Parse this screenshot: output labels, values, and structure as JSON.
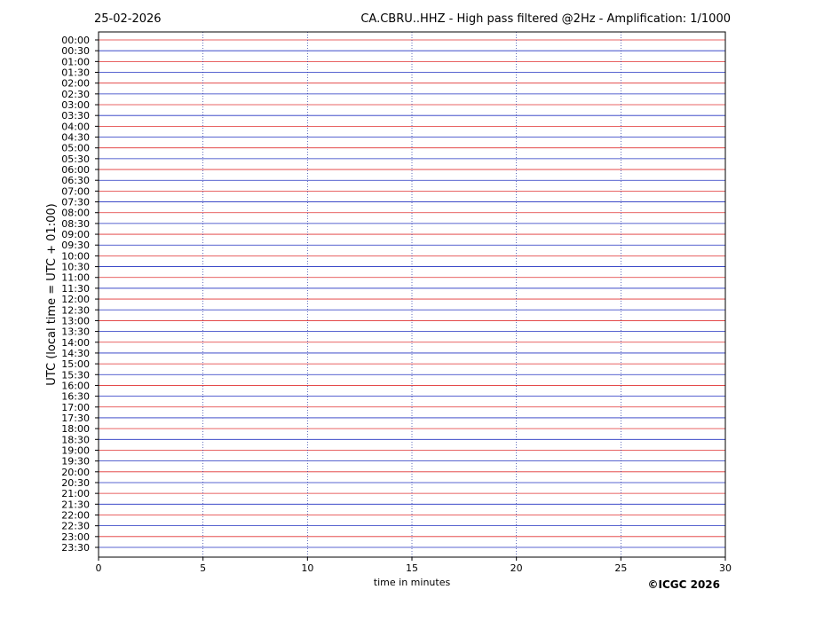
{
  "chart_data": {
    "type": "helicorder",
    "date": "25-02-2026",
    "title": "CA.CBRU..HHZ - High pass filtered @2Hz - Amplification: 1/1000",
    "ylabel": "UTC (local time = UTC + 01:00)",
    "xlabel": "time in minutes",
    "copyright": "©ICGC 2026",
    "categories": [
      "00:00",
      "00:30",
      "01:00",
      "01:30",
      "02:00",
      "02:30",
      "03:00",
      "03:30",
      "04:00",
      "04:30",
      "05:00",
      "05:30",
      "06:00",
      "06:30",
      "07:00",
      "07:30",
      "08:00",
      "08:30",
      "09:00",
      "09:30",
      "10:00",
      "10:30",
      "11:00",
      "11:30",
      "12:00",
      "12:30",
      "13:00",
      "13:30",
      "14:00",
      "14:30",
      "15:00",
      "15:30",
      "16:00",
      "16:30",
      "17:00",
      "17:30",
      "18:00",
      "18:30",
      "19:00",
      "19:30",
      "20:00",
      "20:30",
      "21:00",
      "21:30",
      "22:00",
      "22:30",
      "23:00",
      "23:30"
    ],
    "xlim": [
      0,
      30
    ],
    "xticks": [
      0,
      5,
      10,
      15,
      20,
      25,
      30
    ],
    "colors": [
      "#e03030",
      "#2030c0"
    ],
    "grid": true
  }
}
